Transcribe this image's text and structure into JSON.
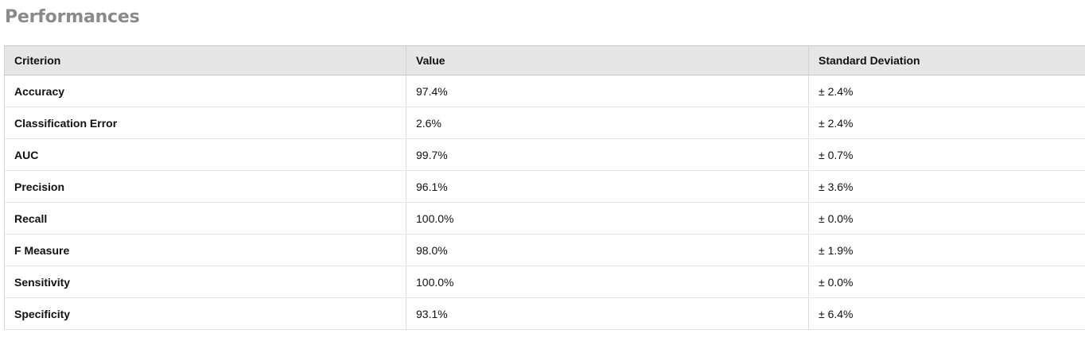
{
  "page": {
    "title": "Performances"
  },
  "table": {
    "headers": [
      "Criterion",
      "Value",
      "Standard Deviation"
    ],
    "rows": [
      {
        "criterion": "Accuracy",
        "value": "97.4%",
        "std": "± 2.4%"
      },
      {
        "criterion": "Classification Error",
        "value": "2.6%",
        "std": "± 2.4%"
      },
      {
        "criterion": "AUC",
        "value": "99.7%",
        "std": "± 0.7%"
      },
      {
        "criterion": "Precision",
        "value": "96.1%",
        "std": "± 3.6%"
      },
      {
        "criterion": "Recall",
        "value": "100.0%",
        "std": "± 0.0%"
      },
      {
        "criterion": "F Measure",
        "value": "98.0%",
        "std": "± 1.9%"
      },
      {
        "criterion": "Sensitivity",
        "value": "100.0%",
        "std": "± 0.0%"
      },
      {
        "criterion": "Specificity",
        "value": "93.1%",
        "std": "± 6.4%"
      }
    ]
  },
  "colors": {
    "title": "#8a8a8a",
    "header_bg": "#e6e6e6",
    "text": "#111111",
    "border": "#d4d4d4"
  }
}
